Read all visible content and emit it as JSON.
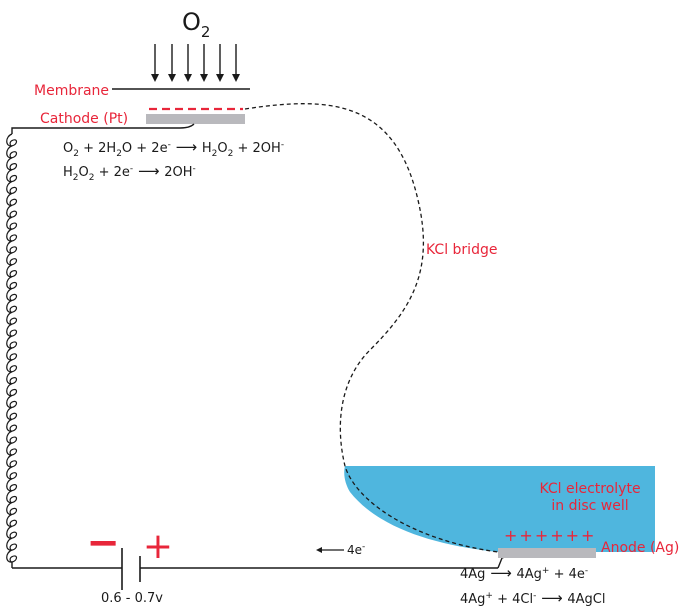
{
  "oxygen": {
    "base": "O",
    "sub": "2"
  },
  "labels": {
    "membrane": "Membrane",
    "cathode": "Cathode (Pt)",
    "bridge": "KCl bridge",
    "electrolyte_line1": "KCl electrolyte",
    "electrolyte_line2": "in disc well",
    "anode": "Anode (Ag)",
    "voltage": "0.6 - 0.7v",
    "electron_flow": "4e",
    "electron_flow_sup": "-",
    "anode_charges": "++++++",
    "cathode_charges": "- - - - -"
  },
  "battery": {
    "negative": "−",
    "positive": "+"
  },
  "cathode_reactions": [
    {
      "parts": [
        {
          "t": "O"
        },
        {
          "t": "2",
          "sub": true
        },
        {
          "t": " + 2H"
        },
        {
          "t": "2",
          "sub": true
        },
        {
          "t": "O + 2e"
        },
        {
          "t": "-",
          "sup": true
        },
        {
          "t": " ⟶ ",
          "arrow": true
        },
        {
          "t": "H"
        },
        {
          "t": "2",
          "sub": true
        },
        {
          "t": "O"
        },
        {
          "t": "2",
          "sub": true
        },
        {
          "t": " + 2OH"
        },
        {
          "t": "-",
          "sup": true
        }
      ]
    },
    {
      "parts": [
        {
          "t": "H"
        },
        {
          "t": "2",
          "sub": true
        },
        {
          "t": "O"
        },
        {
          "t": "2",
          "sub": true
        },
        {
          "t": " + 2e"
        },
        {
          "t": "-",
          "sup": true
        },
        {
          "t": " ⟶ ",
          "arrow": true
        },
        {
          "t": "2OH"
        },
        {
          "t": "-",
          "sup": true
        }
      ]
    }
  ],
  "anode_reactions": [
    {
      "parts": [
        {
          "t": "4Ag"
        },
        {
          "t": " ⟶ ",
          "arrow": true
        },
        {
          "t": "4Ag"
        },
        {
          "t": "+",
          "sup": true
        },
        {
          "t": " + 4e"
        },
        {
          "t": "-",
          "sup": true
        }
      ]
    },
    {
      "parts": [
        {
          "t": "4Ag"
        },
        {
          "t": "+",
          "sup": true
        },
        {
          "t": " + 4Cl"
        },
        {
          "t": "-",
          "sup": true
        },
        {
          "t": " ⟶ ",
          "arrow": true
        },
        {
          "t": "4AgCl"
        }
      ]
    }
  ],
  "colors": {
    "label_red": "#e8263a",
    "electrolyte": "#4fb6de",
    "electrode_gray": "#b9b9bd",
    "line": "#1a1a1a"
  }
}
